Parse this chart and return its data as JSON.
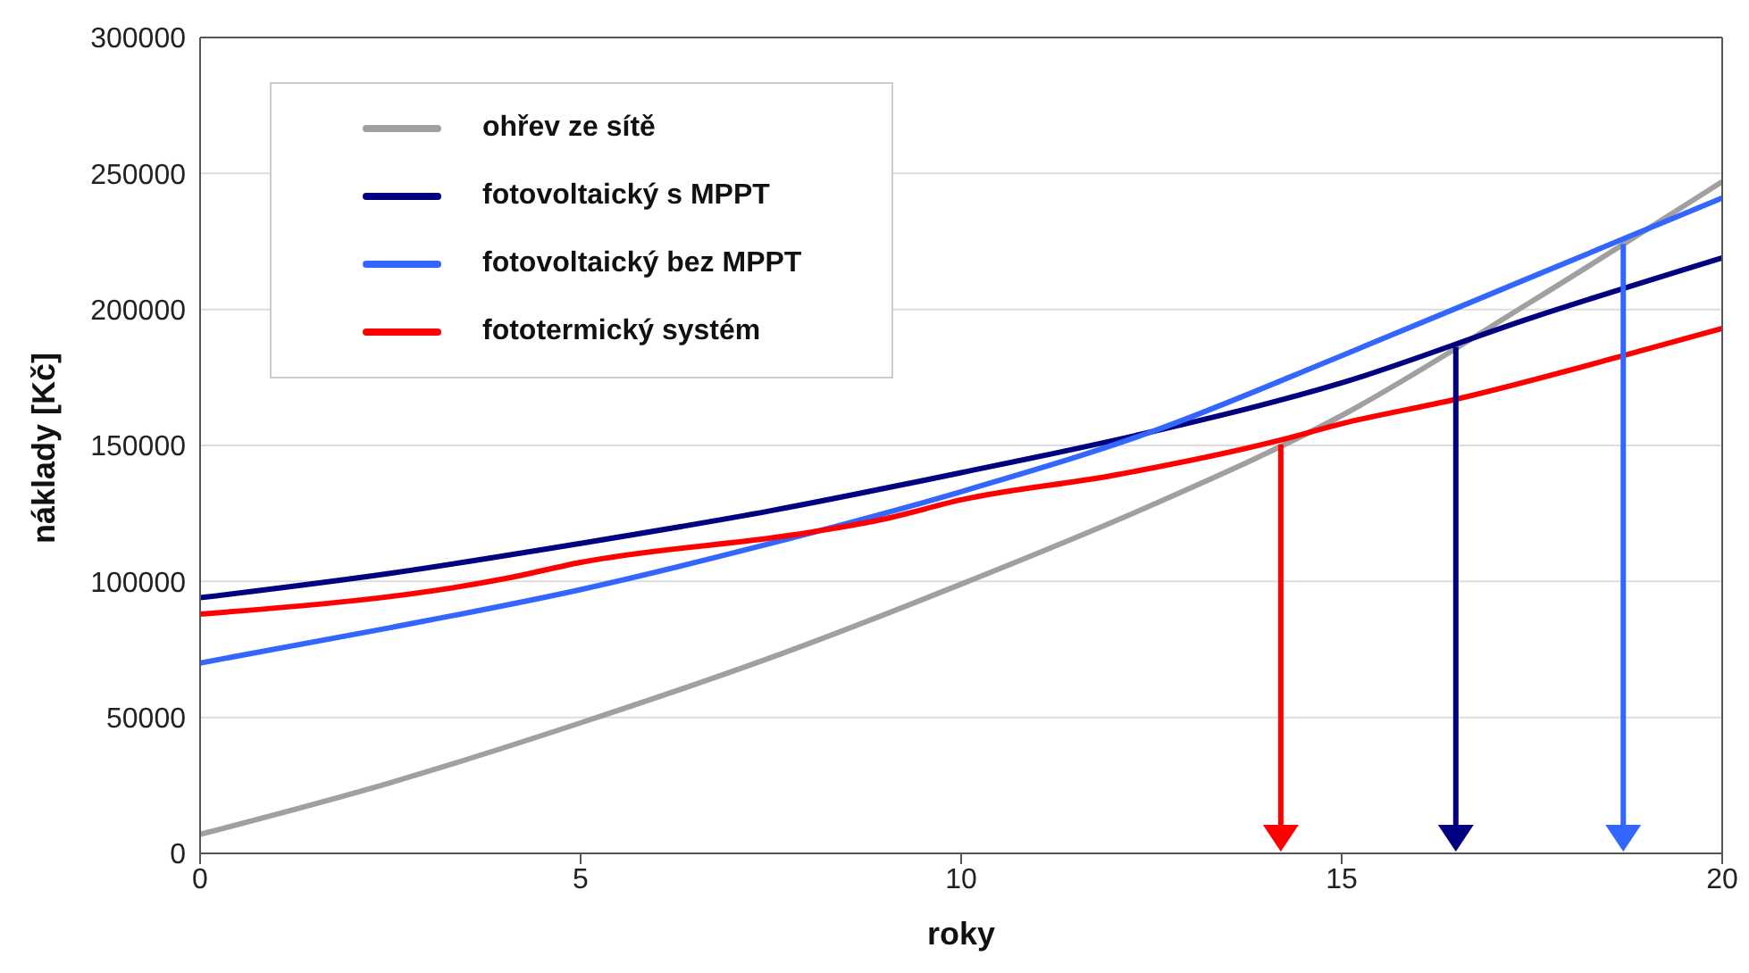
{
  "chart_data": {
    "type": "line",
    "xlabel": "roky",
    "ylabel": "náklady [Kč]",
    "x": [
      0,
      2.5,
      5,
      7.5,
      10,
      12.5,
      15,
      17.5,
      20
    ],
    "series": [
      {
        "name": "ohřev ze sítě",
        "color": "#a0a0a0",
        "values": [
          7000,
          26000,
          48000,
          72000,
          99000,
          128000,
          161000,
          203000,
          247000
        ]
      },
      {
        "name": "fotovoltaický s MPPT",
        "color": "#000080",
        "values": [
          94000,
          103000,
          114000,
          126000,
          140000,
          155000,
          173000,
          197000,
          219000
        ]
      },
      {
        "name": "fotovoltaický bez MPPT",
        "color": "#3366ff",
        "values": [
          70000,
          83000,
          97000,
          114000,
          133000,
          155000,
          183000,
          212000,
          241000
        ]
      },
      {
        "name": "fototermický systém",
        "color": "#ff0000",
        "x": [
          0,
          4,
          5,
          8,
          9,
          10,
          12,
          14.2,
          15,
          16.5,
          18.7,
          20
        ],
        "values": [
          88000,
          101000,
          107000,
          118000,
          123000,
          130000,
          139000,
          152000,
          158000,
          167000,
          183000,
          193000
        ]
      }
    ],
    "xlim": [
      0,
      20
    ],
    "xticks": [
      0,
      5,
      10,
      15,
      20
    ],
    "ylim": [
      0,
      300000
    ],
    "yticks": [
      0,
      50000,
      100000,
      150000,
      200000,
      250000,
      300000
    ],
    "grid": "y",
    "legend": "top left",
    "marker": "none",
    "line_style": "solid",
    "ref_lines": [
      {
        "axis": "x",
        "value": 14.2,
        "color": "#ff0000"
      },
      {
        "axis": "x",
        "value": 16.5,
        "color": "#000080"
      },
      {
        "axis": "x",
        "value": 18.7,
        "color": "#3366ff"
      }
    ]
  }
}
